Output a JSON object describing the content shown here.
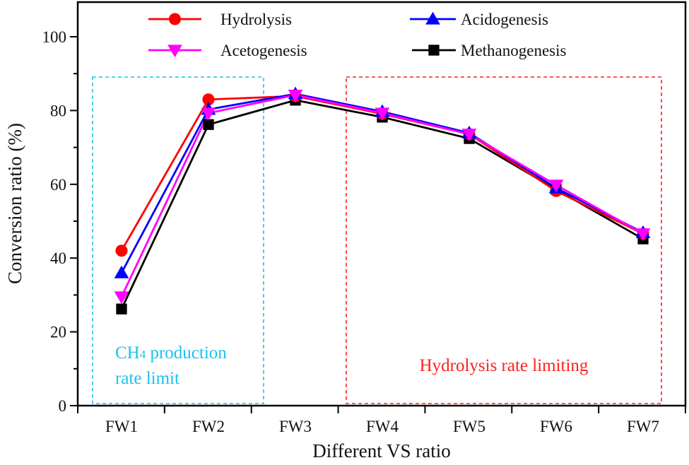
{
  "chart_data": {
    "type": "line",
    "title": "",
    "xlabel": "Different VS ratio",
    "ylabel": "Conversion ratio (%)",
    "ylim": [
      0,
      100
    ],
    "yticks": [
      0,
      20,
      40,
      60,
      80,
      100
    ],
    "y_minor_step": 10,
    "grid": false,
    "categories": [
      "FW1",
      "FW2",
      "FW3",
      "FW4",
      "FW5",
      "FW6",
      "FW7"
    ],
    "legend_position": "top",
    "series": [
      {
        "name": "Hydrolysis",
        "color": "#ff0000",
        "marker": "circle",
        "values": [
          42.0,
          83.0,
          83.9,
          79.1,
          73.6,
          58.2,
          46.6
        ]
      },
      {
        "name": "Acidogenesis",
        "color": "#0000ff",
        "marker": "triangle-up",
        "values": [
          36.0,
          80.3,
          84.5,
          79.7,
          73.9,
          59.0,
          46.9
        ]
      },
      {
        "name": "Acetogenesis",
        "color": "#ff00ff",
        "marker": "triangle-down",
        "values": [
          29.5,
          79.3,
          84.2,
          79.3,
          73.6,
          59.8,
          46.6
        ]
      },
      {
        "name": "Methanogenesis",
        "color": "#000000",
        "marker": "square",
        "values": [
          26.2,
          76.2,
          82.8,
          78.2,
          72.4,
          58.6,
          45.2
        ]
      }
    ],
    "annotations": [
      {
        "id": "ch4",
        "lines": [
          "CH4 production",
          "rate limit"
        ],
        "color": "#19c3ee",
        "box_style": "dashed",
        "spans_categories": [
          "FW1",
          "FW2"
        ]
      },
      {
        "id": "hydrolysis",
        "lines": [
          "Hydrolysis rate limiting"
        ],
        "color": "#ff2020",
        "box_style": "dashed",
        "spans_categories": [
          "FW4",
          "FW7"
        ]
      }
    ]
  }
}
